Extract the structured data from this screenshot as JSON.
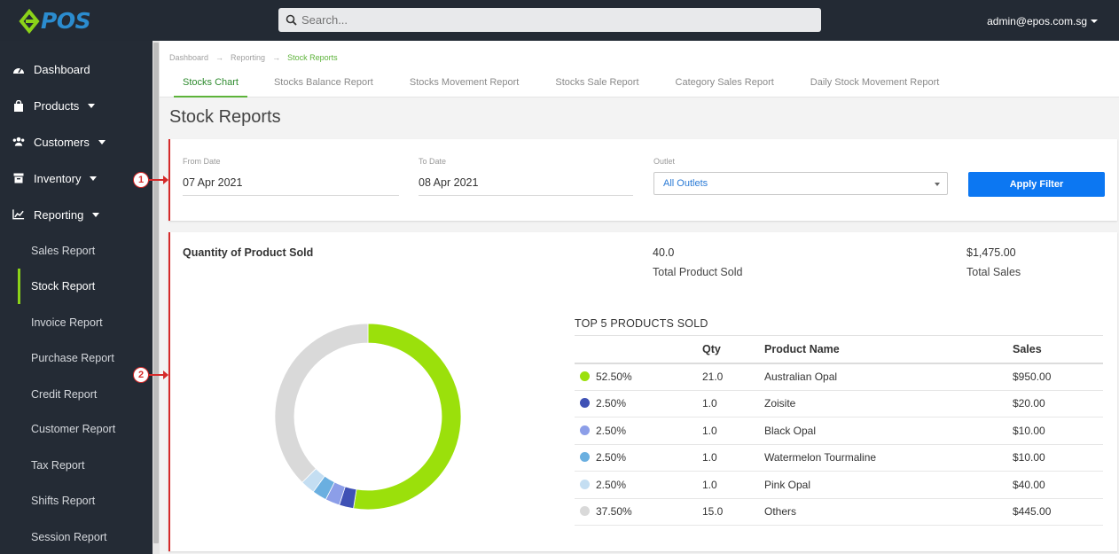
{
  "app": {
    "logo_text": "POS",
    "search_placeholder": "Search...",
    "user_email": "admin@epos.com.sg"
  },
  "sidebar": {
    "items": [
      {
        "label": "Dashboard",
        "icon": "dashboard-icon"
      },
      {
        "label": "Products",
        "icon": "shopping-bag-icon"
      },
      {
        "label": "Customers",
        "icon": "users-icon"
      },
      {
        "label": "Inventory",
        "icon": "box-icon"
      },
      {
        "label": "Reporting",
        "icon": "line-chart-icon"
      }
    ],
    "subitems": [
      "Sales Report",
      "Stock Report",
      "Invoice Report",
      "Purchase Report",
      "Credit Report",
      "Customer Report",
      "Tax Report",
      "Shifts Report",
      "Session Report"
    ]
  },
  "breadcrumb": [
    "Dashboard",
    "Reporting",
    "Stock Reports"
  ],
  "tabs": [
    "Stocks Chart",
    "Stocks Balance Report",
    "Stocks Movement Report",
    "Stocks Sale Report",
    "Category Sales Report",
    "Daily Stock Movement Report"
  ],
  "page_title": "Stock Reports",
  "filter": {
    "from_label": "From Date",
    "from_value": "07 Apr 2021",
    "to_label": "To Date",
    "to_value": "08 Apr 2021",
    "outlet_label": "Outlet",
    "outlet_value": "All Outlets",
    "apply_label": "Apply Filter"
  },
  "annotations": [
    "1",
    "2"
  ],
  "summary": {
    "chart_title": "Quantity of Product Sold",
    "total_product_value": "40.0",
    "total_product_label": "Total Product Sold",
    "total_sales_value": "$1,475.00",
    "total_sales_label": "Total Sales"
  },
  "top5": {
    "title": "TOP 5 PRODUCTS SOLD",
    "headers": [
      "",
      "Qty",
      "Product Name",
      "Sales"
    ],
    "rows": [
      {
        "pct": "52.50%",
        "qty": "21.0",
        "name": "Australian Opal",
        "sales": "$950.00",
        "color": "#9be00b"
      },
      {
        "pct": "2.50%",
        "qty": "1.0",
        "name": "Zoisite",
        "sales": "$20.00",
        "color": "#3f51b5"
      },
      {
        "pct": "2.50%",
        "qty": "1.0",
        "name": "Black Opal",
        "sales": "$10.00",
        "color": "#8c9ee8"
      },
      {
        "pct": "2.50%",
        "qty": "1.0",
        "name": "Watermelon Tourmaline",
        "sales": "$10.00",
        "color": "#6aafe0"
      },
      {
        "pct": "2.50%",
        "qty": "1.0",
        "name": "Pink Opal",
        "sales": "$40.00",
        "color": "#c4def2"
      },
      {
        "pct": "37.50%",
        "qty": "15.0",
        "name": "Others",
        "sales": "$445.00",
        "color": "#d9d9d9"
      }
    ]
  },
  "chart_data": {
    "type": "pie",
    "categories": [
      "Australian Opal",
      "Zoisite",
      "Black Opal",
      "Watermelon Tourmaline",
      "Pink Opal",
      "Others"
    ],
    "values": [
      52.5,
      2.5,
      2.5,
      2.5,
      2.5,
      37.5
    ],
    "colors": [
      "#9be00b",
      "#3f51b5",
      "#8c9ee8",
      "#6aafe0",
      "#c4def2",
      "#d9d9d9"
    ],
    "title": "Quantity of Product Sold"
  }
}
